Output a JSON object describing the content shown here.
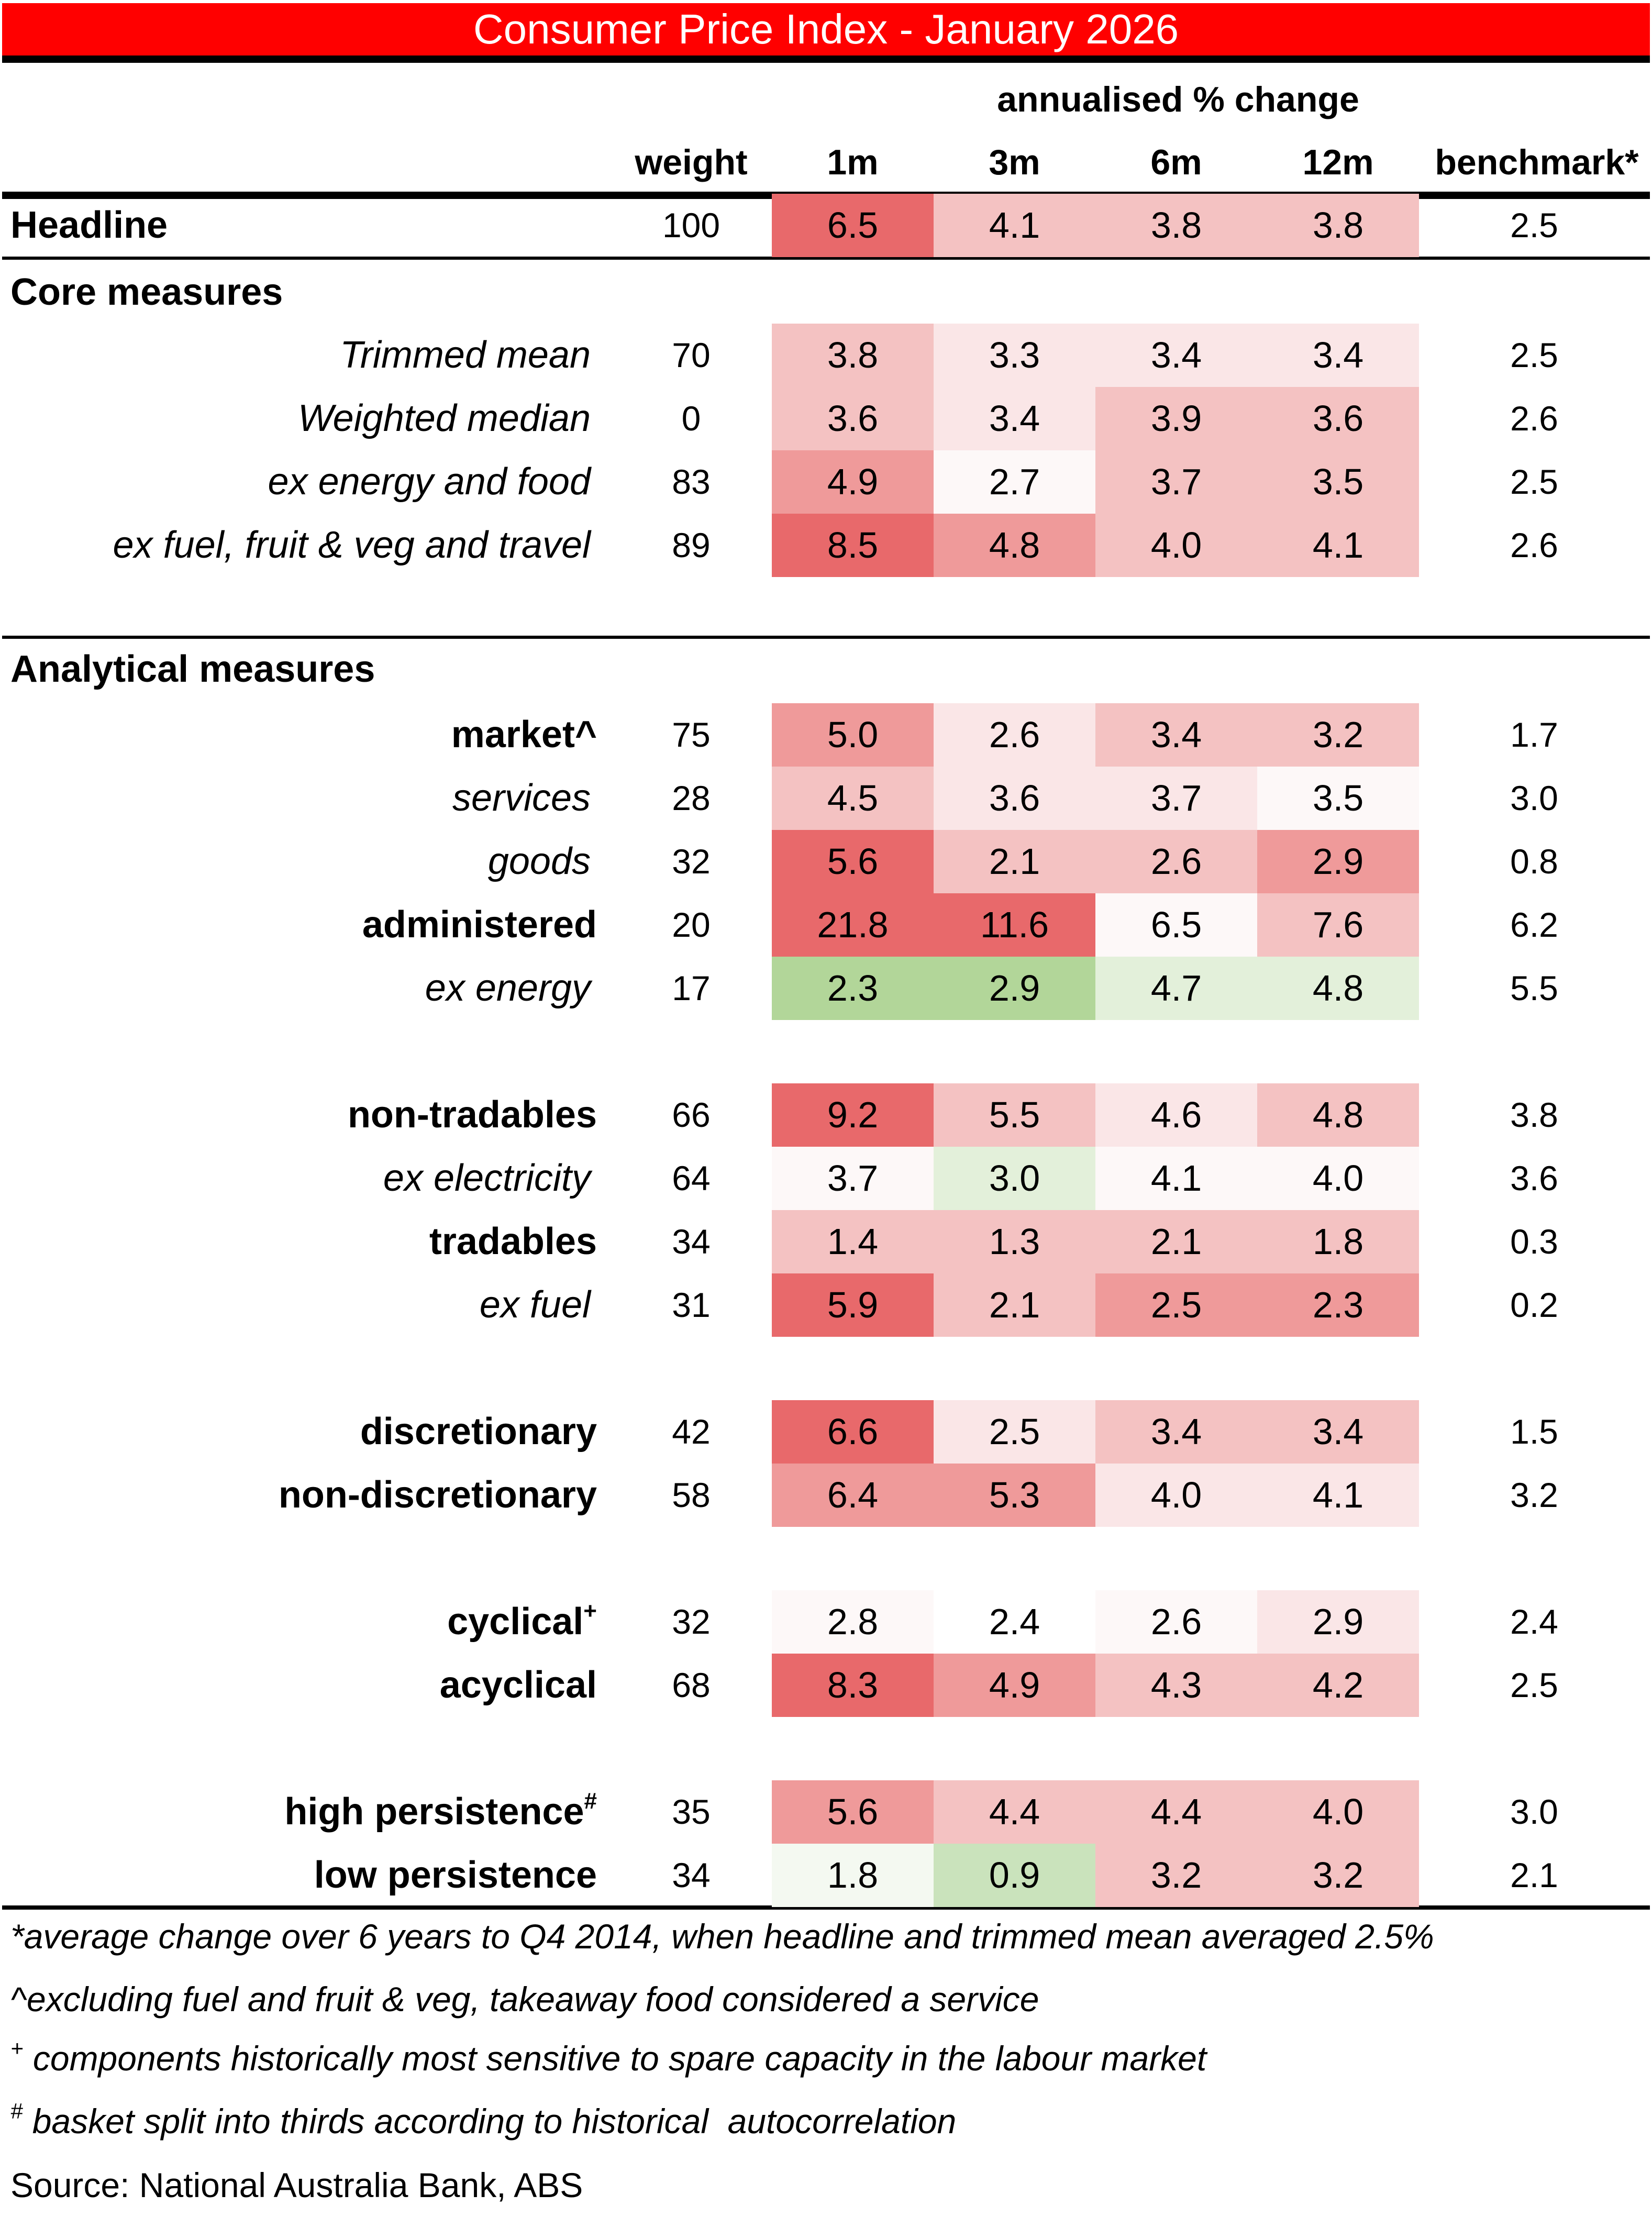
{
  "title": "Consumer Price Index - January 2026",
  "header": {
    "group_label": "annualised % change",
    "columns": [
      "weight",
      "1m",
      "3m",
      "6m",
      "12m",
      "benchmark*"
    ]
  },
  "colors": {
    "title_bg": "#ff0000",
    "scale": {
      "red_strong": "#e8696b",
      "red_medium": "#ef9a9a",
      "red_light": "#f4c2c2",
      "red_pale": "#fae6e7",
      "near_white": "#fdf8f8",
      "white": "#ffffff",
      "green_pale": "#f4f9f1",
      "green_light": "#e3f0da",
      "green_medium": "#cae3bc",
      "green_strong": "#b2d699"
    }
  },
  "sections": {
    "core": "Core measures",
    "analytical": "Analytical measures"
  },
  "rows": [
    {
      "label": "Headline",
      "style": "headline",
      "weight": "100",
      "values": [
        "6.5",
        "4.1",
        "3.8",
        "3.8"
      ],
      "colors": [
        "red_strong",
        "red_light",
        "red_light",
        "red_light"
      ],
      "benchmark": "2.5"
    },
    {
      "label": "Trimmed mean",
      "style": "italic",
      "weight": "70",
      "values": [
        "3.8",
        "3.3",
        "3.4",
        "3.4"
      ],
      "colors": [
        "red_light",
        "red_pale",
        "red_pale",
        "red_pale"
      ],
      "benchmark": "2.5"
    },
    {
      "label": "Weighted median",
      "style": "italic",
      "weight": "0",
      "values": [
        "3.6",
        "3.4",
        "3.9",
        "3.6"
      ],
      "colors": [
        "red_light",
        "red_pale",
        "red_light",
        "red_light"
      ],
      "benchmark": "2.6"
    },
    {
      "label": "ex energy and food",
      "style": "italic",
      "weight": "83",
      "values": [
        "4.9",
        "2.7",
        "3.7",
        "3.5"
      ],
      "colors": [
        "red_medium",
        "near_white",
        "red_light",
        "red_light"
      ],
      "benchmark": "2.5"
    },
    {
      "label": "ex fuel, fruit & veg and travel",
      "style": "italic",
      "weight": "89",
      "values": [
        "8.5",
        "4.8",
        "4.0",
        "4.1"
      ],
      "colors": [
        "red_strong",
        "red_medium",
        "red_light",
        "red_light"
      ],
      "benchmark": "2.6"
    },
    {
      "label": "market",
      "sup": "^",
      "style": "bold",
      "weight": "75",
      "values": [
        "5.0",
        "2.6",
        "3.4",
        "3.2"
      ],
      "colors": [
        "red_medium",
        "red_pale",
        "red_light",
        "red_light"
      ],
      "benchmark": "1.7"
    },
    {
      "label": "services",
      "style": "italic",
      "weight": "28",
      "values": [
        "4.5",
        "3.6",
        "3.7",
        "3.5"
      ],
      "colors": [
        "red_light",
        "red_pale",
        "red_pale",
        "near_white"
      ],
      "benchmark": "3.0"
    },
    {
      "label": "goods",
      "style": "italic",
      "weight": "32",
      "values": [
        "5.6",
        "2.1",
        "2.6",
        "2.9"
      ],
      "colors": [
        "red_strong",
        "red_light",
        "red_light",
        "red_medium"
      ],
      "benchmark": "0.8"
    },
    {
      "label": "administered",
      "style": "bold",
      "weight": "20",
      "values": [
        "21.8",
        "11.6",
        "6.5",
        "7.6"
      ],
      "colors": [
        "red_strong",
        "red_strong",
        "near_white",
        "red_light"
      ],
      "benchmark": "6.2"
    },
    {
      "label": "ex energy",
      "style": "italic",
      "weight": "17",
      "values": [
        "2.3",
        "2.9",
        "4.7",
        "4.8"
      ],
      "colors": [
        "green_strong",
        "green_strong",
        "green_light",
        "green_light"
      ],
      "benchmark": "5.5"
    },
    {
      "label": "non-tradables",
      "style": "bold",
      "weight": "66",
      "values": [
        "9.2",
        "5.5",
        "4.6",
        "4.8"
      ],
      "colors": [
        "red_strong",
        "red_light",
        "red_pale",
        "red_light"
      ],
      "benchmark": "3.8"
    },
    {
      "label": "ex electricity",
      "style": "italic",
      "weight": "64",
      "values": [
        "3.7",
        "3.0",
        "4.1",
        "4.0"
      ],
      "colors": [
        "near_white",
        "green_light",
        "near_white",
        "near_white"
      ],
      "benchmark": "3.6"
    },
    {
      "label": "tradables",
      "style": "bold",
      "weight": "34",
      "values": [
        "1.4",
        "1.3",
        "2.1",
        "1.8"
      ],
      "colors": [
        "red_light",
        "red_light",
        "red_light",
        "red_light"
      ],
      "benchmark": "0.3"
    },
    {
      "label": "ex fuel",
      "style": "italic",
      "weight": "31",
      "values": [
        "5.9",
        "2.1",
        "2.5",
        "2.3"
      ],
      "colors": [
        "red_strong",
        "red_light",
        "red_medium",
        "red_medium"
      ],
      "benchmark": "0.2"
    },
    {
      "label": "discretionary",
      "style": "bold",
      "weight": "42",
      "values": [
        "6.6",
        "2.5",
        "3.4",
        "3.4"
      ],
      "colors": [
        "red_strong",
        "red_pale",
        "red_light",
        "red_light"
      ],
      "benchmark": "1.5"
    },
    {
      "label": "non-discretionary",
      "style": "bold",
      "weight": "58",
      "values": [
        "6.4",
        "5.3",
        "4.0",
        "4.1"
      ],
      "colors": [
        "red_medium",
        "red_medium",
        "red_pale",
        "red_pale"
      ],
      "benchmark": "3.2"
    },
    {
      "label": "cyclical",
      "sup": "+",
      "style": "bold",
      "weight": "32",
      "values": [
        "2.8",
        "2.4",
        "2.6",
        "2.9"
      ],
      "colors": [
        "near_white",
        "white",
        "near_white",
        "red_pale"
      ],
      "benchmark": "2.4"
    },
    {
      "label": "acyclical",
      "style": "bold",
      "weight": "68",
      "values": [
        "8.3",
        "4.9",
        "4.3",
        "4.2"
      ],
      "colors": [
        "red_strong",
        "red_medium",
        "red_light",
        "red_light"
      ],
      "benchmark": "2.5"
    },
    {
      "label": "high persistence",
      "sup": "#",
      "style": "bold",
      "weight": "35",
      "values": [
        "5.6",
        "4.4",
        "4.4",
        "4.0"
      ],
      "colors": [
        "red_medium",
        "red_light",
        "red_light",
        "red_light"
      ],
      "benchmark": "3.0"
    },
    {
      "label": "low persistence",
      "style": "bold",
      "weight": "34",
      "values": [
        "1.8",
        "0.9",
        "3.2",
        "3.2"
      ],
      "colors": [
        "green_pale",
        "green_medium",
        "red_light",
        "red_light"
      ],
      "benchmark": "2.1"
    }
  ],
  "footnotes": [
    {
      "marker": "*",
      "text": "average change over 6 years to Q4 2014, when headline and trimmed mean averaged 2.5%",
      "sup": false
    },
    {
      "marker": "^",
      "text": "excluding fuel and fruit & veg, takeaway food considered a service",
      "sup": false
    },
    {
      "marker": "+",
      "text": " components historically most sensitive to spare capacity in the labour market",
      "sup": true
    },
    {
      "marker": "#",
      "text": " basket split into thirds according to historical  autocorrelation",
      "sup": true
    }
  ],
  "source": "Source: National Australia Bank, ABS"
}
